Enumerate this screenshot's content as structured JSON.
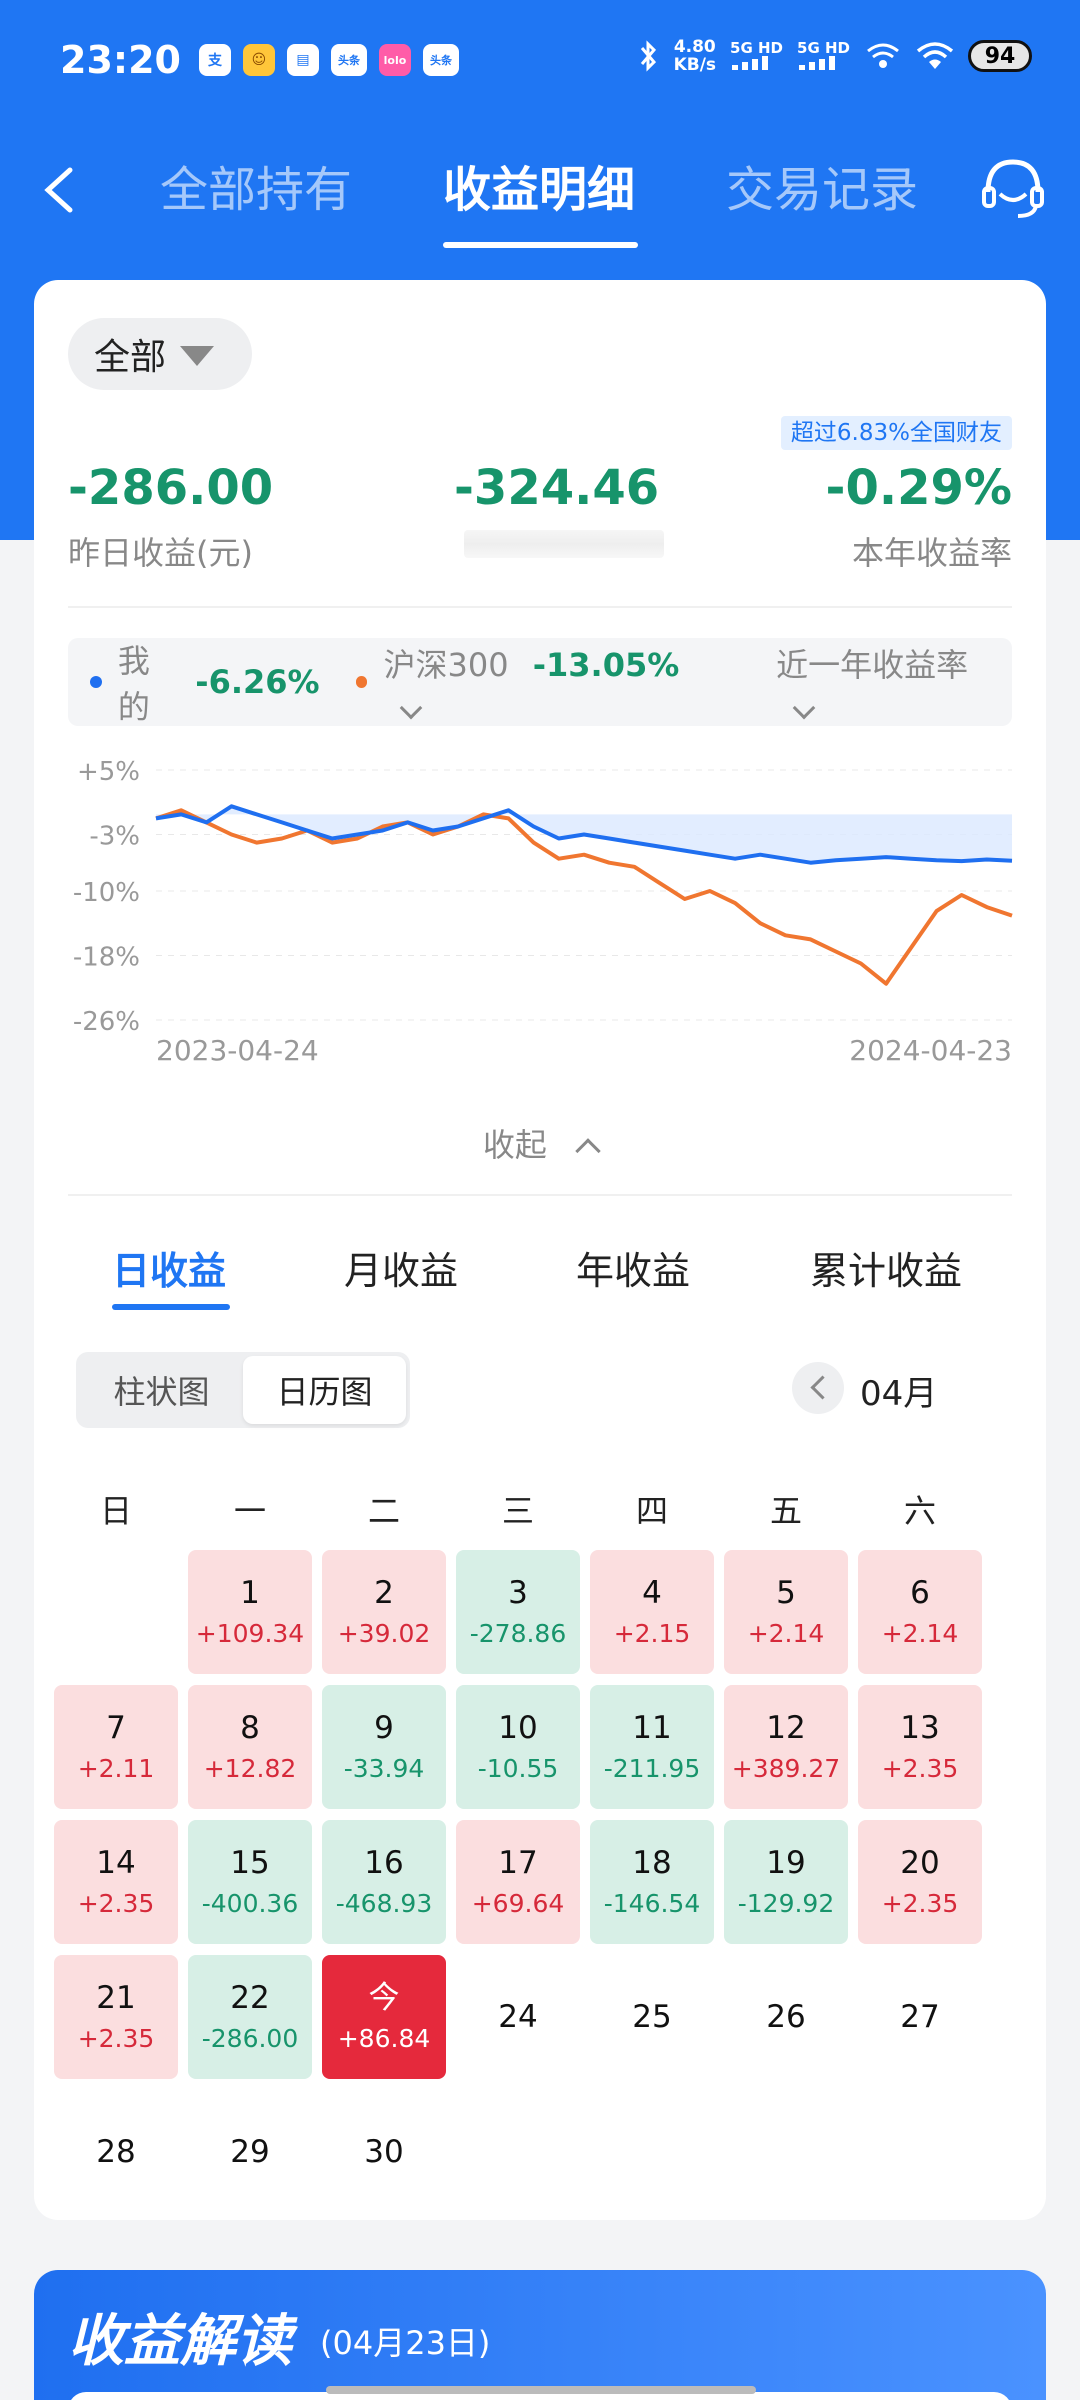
{
  "status_bar": {
    "time": "23:20",
    "apps": [
      "支",
      "☺",
      "▤",
      "头条",
      "lolo",
      "头条"
    ],
    "net_speed_value": "4.80",
    "net_speed_unit": "KB/s",
    "signal1": "5G HD",
    "signal2": "5G HD",
    "battery": "94"
  },
  "nav": {
    "tabs": [
      "全部持有",
      "收益明细",
      "交易记录"
    ],
    "active_tab": 1
  },
  "summary": {
    "filter": "全部",
    "badge": "超过6.83%全国财友",
    "yesterday_value": "-286.00",
    "yesterday_label": "昨日收益(元)",
    "middle_value": "-324.46",
    "year_rate_value": "-0.29%",
    "year_rate_label": "本年收益率"
  },
  "legend": {
    "mine_label": "我的",
    "mine_pct": "-6.26%",
    "index_label": "沪深300",
    "index_pct": "-13.05%",
    "range_label": "近一年收益率"
  },
  "colors": {
    "accent": "#1f76f3",
    "mine_series": "#1f6ff0",
    "index_series": "#f07630",
    "positive": "#d6293a",
    "negative": "#17946b"
  },
  "chart_data": {
    "type": "line",
    "x_start": "2023-04-24",
    "x_end": "2024-04-23",
    "y_ticks": [
      "+5%",
      "-3%",
      "-10%",
      "-18%",
      "-26%"
    ],
    "y_tick_values": [
      5,
      -3,
      -10,
      -18,
      -26
    ],
    "ylim": [
      -26,
      5
    ],
    "series": [
      {
        "name": "我的",
        "values": [
          -1.0,
          -0.5,
          -1.5,
          0.5,
          -0.5,
          -1.5,
          -2.5,
          -3.5,
          -3.0,
          -2.5,
          -1.5,
          -2.5,
          -2.0,
          -1.0,
          0.0,
          -2.0,
          -3.5,
          -3.0,
          -3.5,
          -4.0,
          -4.5,
          -5.0,
          -5.5,
          -6.0,
          -5.5,
          -6.0,
          -6.5,
          -6.2,
          -6.0,
          -5.8,
          -6.0,
          -6.2,
          -6.3,
          -6.1,
          -6.26
        ]
      },
      {
        "name": "沪深300",
        "values": [
          -1.0,
          0.0,
          -1.5,
          -3.0,
          -4.0,
          -3.5,
          -2.5,
          -4.0,
          -3.5,
          -2.0,
          -1.5,
          -3.0,
          -2.0,
          -0.5,
          -1.0,
          -4.0,
          -6.0,
          -5.5,
          -6.5,
          -7.0,
          -9.0,
          -11.0,
          -10.0,
          -11.5,
          -14.0,
          -15.5,
          -16.0,
          -17.5,
          -19.0,
          -21.5,
          -17.0,
          -12.5,
          -10.5,
          -12.0,
          -13.05
        ]
      }
    ]
  },
  "collapse_label": "收起",
  "period_tabs": [
    "日收益",
    "月收益",
    "年收益",
    "累计收益"
  ],
  "view_toggle": [
    "柱状图",
    "日历图"
  ],
  "month": "04月",
  "weekdays": [
    "日",
    "一",
    "二",
    "三",
    "四",
    "五",
    "六"
  ],
  "calendar": [
    {
      "d": "1",
      "v": "+109.34",
      "t": "pos"
    },
    {
      "d": "2",
      "v": "+39.02",
      "t": "pos"
    },
    {
      "d": "3",
      "v": "-278.86",
      "t": "neg"
    },
    {
      "d": "4",
      "v": "+2.15",
      "t": "pos"
    },
    {
      "d": "5",
      "v": "+2.14",
      "t": "pos"
    },
    {
      "d": "6",
      "v": "+2.14",
      "t": "pos"
    },
    {
      "d": "7",
      "v": "+2.11",
      "t": "pos"
    },
    {
      "d": "8",
      "v": "+12.82",
      "t": "pos"
    },
    {
      "d": "9",
      "v": "-33.94",
      "t": "neg"
    },
    {
      "d": "10",
      "v": "-10.55",
      "t": "neg"
    },
    {
      "d": "11",
      "v": "-211.95",
      "t": "neg"
    },
    {
      "d": "12",
      "v": "+389.27",
      "t": "pos"
    },
    {
      "d": "13",
      "v": "+2.35",
      "t": "pos"
    },
    {
      "d": "14",
      "v": "+2.35",
      "t": "pos"
    },
    {
      "d": "15",
      "v": "-400.36",
      "t": "neg"
    },
    {
      "d": "16",
      "v": "-468.93",
      "t": "neg"
    },
    {
      "d": "17",
      "v": "+69.64",
      "t": "pos"
    },
    {
      "d": "18",
      "v": "-146.54",
      "t": "neg"
    },
    {
      "d": "19",
      "v": "-129.92",
      "t": "neg"
    },
    {
      "d": "20",
      "v": "+2.35",
      "t": "pos"
    },
    {
      "d": "21",
      "v": "+2.35",
      "t": "pos"
    },
    {
      "d": "22",
      "v": "-286.00",
      "t": "neg"
    },
    {
      "d": "今",
      "v": "+86.84",
      "t": "today"
    },
    {
      "d": "24",
      "v": "",
      "t": "plain"
    },
    {
      "d": "25",
      "v": "",
      "t": "plain"
    },
    {
      "d": "26",
      "v": "",
      "t": "plain"
    },
    {
      "d": "27",
      "v": "",
      "t": "plain"
    },
    {
      "d": "28",
      "v": "",
      "t": "plain"
    },
    {
      "d": "29",
      "v": "",
      "t": "plain"
    },
    {
      "d": "30",
      "v": "",
      "t": "plain"
    }
  ],
  "analysis": {
    "title": "收益解读",
    "date": "(04月23日)"
  }
}
